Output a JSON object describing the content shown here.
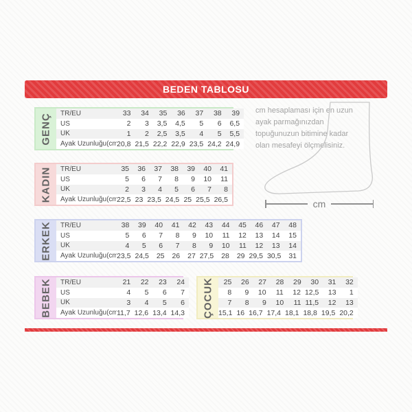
{
  "title": "BEDEN TABLOSU",
  "colors": {
    "banner_red": "#e23b3d",
    "genc_bg": "#d9f2d7",
    "genc_border": "#c9eac7",
    "kadin_bg": "#f7dada",
    "kadin_border": "#f3cccc",
    "erkek_bg": "#dadef4",
    "erkek_border": "#ccd2ee",
    "bebek_bg": "#f2d6f0",
    "bebek_border": "#ecc6ea",
    "cocuk_bg": "#f8f5d6",
    "cocuk_border": "#f1ecc0"
  },
  "info": {
    "text": "cm hesaplaması için en uzun ayak parmağınızdan topuğunuzun bitimine kadar olan mesafeyi ölçmelisiniz.",
    "cm_label": "cm"
  },
  "sections": [
    {
      "id": "genc",
      "label": "GENÇ",
      "bg": "#d9f2d7",
      "border": "#c9eac7",
      "row_labels": [
        "TR/EU",
        "US",
        "UK",
        "Ayak Uzunluğu(cm)"
      ],
      "rows": [
        [
          "33",
          "34",
          "35",
          "36",
          "37",
          "38",
          "39"
        ],
        [
          "2",
          "3",
          "3,5",
          "4,5",
          "5",
          "6",
          "6,5"
        ],
        [
          "1",
          "2",
          "2,5",
          "3,5",
          "4",
          "5",
          "5,5"
        ],
        [
          "20,8",
          "21,5",
          "22,2",
          "22,9",
          "23,5",
          "24,2",
          "24,9"
        ]
      ]
    },
    {
      "id": "kadin",
      "label": "KADIN",
      "bg": "#f7dada",
      "border": "#f3cccc",
      "row_labels": [
        "TR/EU",
        "US",
        "UK",
        "Ayak Uzunluğu(cm)"
      ],
      "rows": [
        [
          "35",
          "36",
          "37",
          "38",
          "39",
          "40",
          "41"
        ],
        [
          "5",
          "6",
          "7",
          "8",
          "9",
          "10",
          "11"
        ],
        [
          "2",
          "3",
          "4",
          "5",
          "6",
          "7",
          "8"
        ],
        [
          "22,5",
          "23",
          "23,5",
          "24,5",
          "25",
          "25,5",
          "26,5"
        ]
      ]
    },
    {
      "id": "erkek",
      "label": "ERKEK",
      "bg": "#dadef4",
      "border": "#ccd2ee",
      "row_labels": [
        "TR/EU",
        "US",
        "UK",
        "Ayak Uzunluğu(cm)"
      ],
      "rows": [
        [
          "38",
          "39",
          "40",
          "41",
          "42",
          "43",
          "44",
          "45",
          "46",
          "47",
          "48"
        ],
        [
          "5",
          "6",
          "7",
          "8",
          "9",
          "10",
          "11",
          "12",
          "13",
          "14",
          "15"
        ],
        [
          "4",
          "5",
          "6",
          "7",
          "8",
          "9",
          "10",
          "11",
          "12",
          "13",
          "14"
        ],
        [
          "23,5",
          "24,5",
          "25",
          "26",
          "27",
          "27,5",
          "28",
          "29",
          "29,5",
          "30,5",
          "31"
        ]
      ]
    },
    {
      "id": "bebek",
      "label": "BEBEK",
      "bg": "#f2d6f0",
      "border": "#ecc6ea",
      "row_labels": [
        "TR/EU",
        "US",
        "UK",
        "Ayak Uzunluğu(cm)"
      ],
      "rows": [
        [
          "21",
          "22",
          "23",
          "24"
        ],
        [
          "4",
          "5",
          "6",
          "7"
        ],
        [
          "3",
          "4",
          "5",
          "6"
        ],
        [
          "11,7",
          "12,6",
          "13,4",
          "14,3"
        ]
      ]
    },
    {
      "id": "cocuk",
      "label": "ÇOCUK",
      "bg": "#f8f5d6",
      "border": "#f1ecc0",
      "row_labels": null,
      "rows": [
        [
          "25",
          "26",
          "27",
          "28",
          "29",
          "30",
          "31",
          "32"
        ],
        [
          "8",
          "9",
          "10",
          "11",
          "12",
          "12,5",
          "13",
          "1"
        ],
        [
          "7",
          "8",
          "9",
          "10",
          "11",
          "11,5",
          "12",
          "13"
        ],
        [
          "15,1",
          "16",
          "16,7",
          "17,4",
          "18,1",
          "18,8",
          "19,5",
          "20,2"
        ]
      ]
    }
  ]
}
